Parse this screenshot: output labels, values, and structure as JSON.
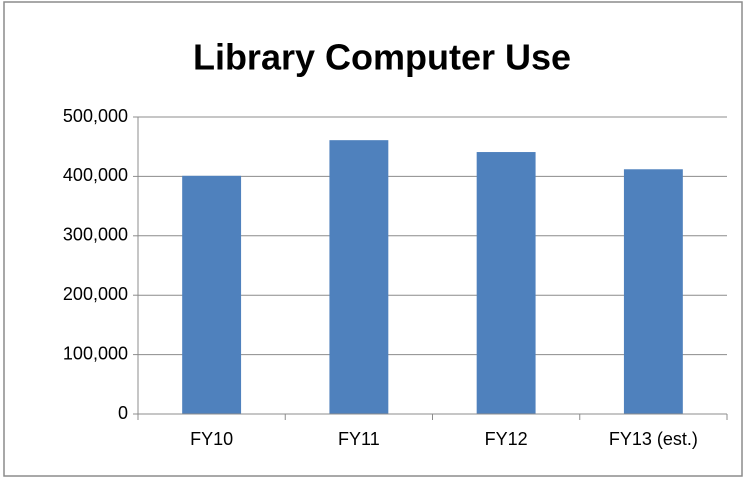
{
  "chart_data": {
    "type": "bar",
    "title": "Library Computer Use",
    "categories": [
      "FY10",
      "FY11",
      "FY12",
      "FY13 (est.)"
    ],
    "values": [
      401000,
      461000,
      441000,
      412000
    ],
    "color": "#4f81bd",
    "ylim": [
      0,
      500000
    ],
    "yticks": [
      0,
      {
        "value": 100000,
        "label": "100,000"
      },
      {
        "value": 200000,
        "label": "200,000"
      },
      {
        "value": 300000,
        "label": "300,000"
      },
      {
        "value": 400000,
        "label": "400,000"
      },
      {
        "value": 500000,
        "label": "500,000"
      }
    ],
    "grid": true
  }
}
